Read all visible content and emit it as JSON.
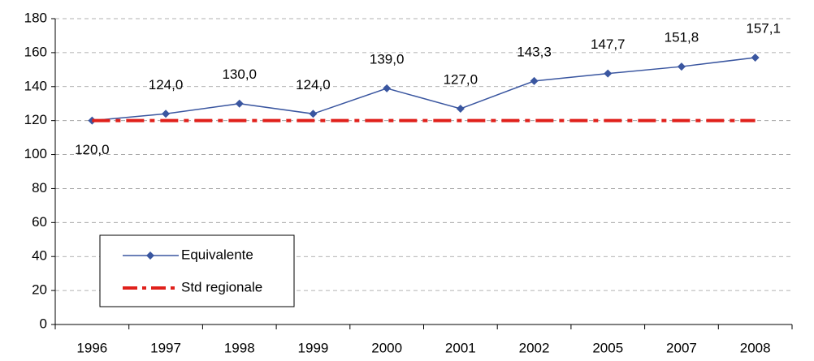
{
  "chart_data": {
    "type": "line",
    "categories": [
      "1996",
      "1997",
      "1998",
      "1999",
      "2000",
      "2001",
      "2002",
      "2005",
      "2007",
      "2008"
    ],
    "series": [
      {
        "name": "Equivalente",
        "color": "#3a56a0",
        "values": [
          120.0,
          124.0,
          130.0,
          124.0,
          139.0,
          127.0,
          143.3,
          147.7,
          151.8,
          157.1
        ],
        "value_labels": [
          "120,0",
          "124,0",
          "130,0",
          "124,0",
          "139,0",
          "127,0",
          "143,3",
          "147,7",
          "151,8",
          "157,1"
        ]
      },
      {
        "name": "Std regionale",
        "color": "#e0201b",
        "values": [
          120,
          120,
          120,
          120,
          120,
          120,
          120,
          120,
          120,
          120
        ]
      }
    ],
    "ylim": [
      0,
      180
    ],
    "yticks": [
      0,
      20,
      40,
      60,
      80,
      100,
      120,
      140,
      160,
      180
    ],
    "grid": true,
    "legend": "lower left"
  }
}
